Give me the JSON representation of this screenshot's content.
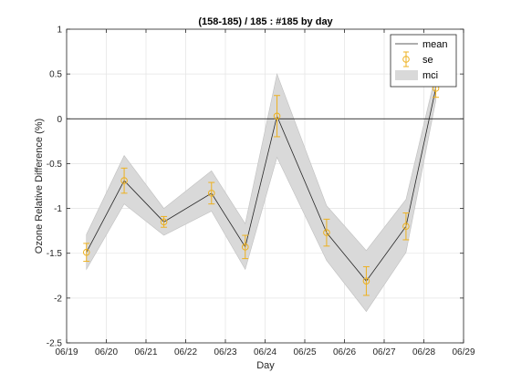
{
  "chart_data": {
    "type": "line",
    "title": "(158-185) / 185 : #185 by day",
    "xlabel": "Day",
    "ylabel": "Ozone Relative Difference (%)",
    "x_tick_labels": [
      "06/19",
      "06/20",
      "06/21",
      "06/22",
      "06/23",
      "06/24",
      "06/25",
      "06/26",
      "06/27",
      "06/28",
      "06/29"
    ],
    "x_ticks": [
      0,
      1,
      2,
      3,
      4,
      5,
      6,
      7,
      8,
      9,
      10
    ],
    "xlim": [
      0,
      10
    ],
    "ylim": [
      -2.5,
      1
    ],
    "y_ticks": [
      -2.5,
      -2,
      -1.5,
      -1,
      -0.5,
      0,
      0.5,
      1
    ],
    "y_tick_labels": [
      "-2.5",
      "-2",
      "-1.5",
      "-1",
      "-0.5",
      "0",
      "0.5",
      "1"
    ],
    "grid": true,
    "zero_line": 0,
    "legend": {
      "location": "top-right",
      "entries": [
        "mean",
        "se",
        "mci"
      ]
    },
    "series": [
      {
        "name": "mean",
        "x": [
          0.5,
          1.45,
          2.45,
          3.65,
          4.5,
          5.3,
          6.55,
          7.55,
          8.55,
          9.3
        ],
        "y": [
          -1.49,
          -0.69,
          -1.15,
          -0.83,
          -1.43,
          0.03,
          -1.27,
          -1.81,
          -1.2,
          0.34
        ],
        "se": [
          0.1,
          0.14,
          0.06,
          0.12,
          0.13,
          0.23,
          0.15,
          0.16,
          0.15,
          0.1
        ],
        "mci_low": [
          -1.68,
          -0.95,
          -1.3,
          -1.03,
          -1.68,
          -0.43,
          -1.58,
          -2.15,
          -1.49,
          0.2
        ],
        "mci_high": [
          -1.29,
          -0.41,
          -1.0,
          -0.58,
          -1.17,
          0.5,
          -0.97,
          -1.47,
          -0.9,
          0.5
        ]
      }
    ],
    "colors": {
      "mean": "#262626",
      "se": "#EDB120",
      "mci": "#d9d9d9",
      "mci_edge": "#bfbfbf",
      "axes": "#262626",
      "grid": "#e6e6e6"
    }
  }
}
